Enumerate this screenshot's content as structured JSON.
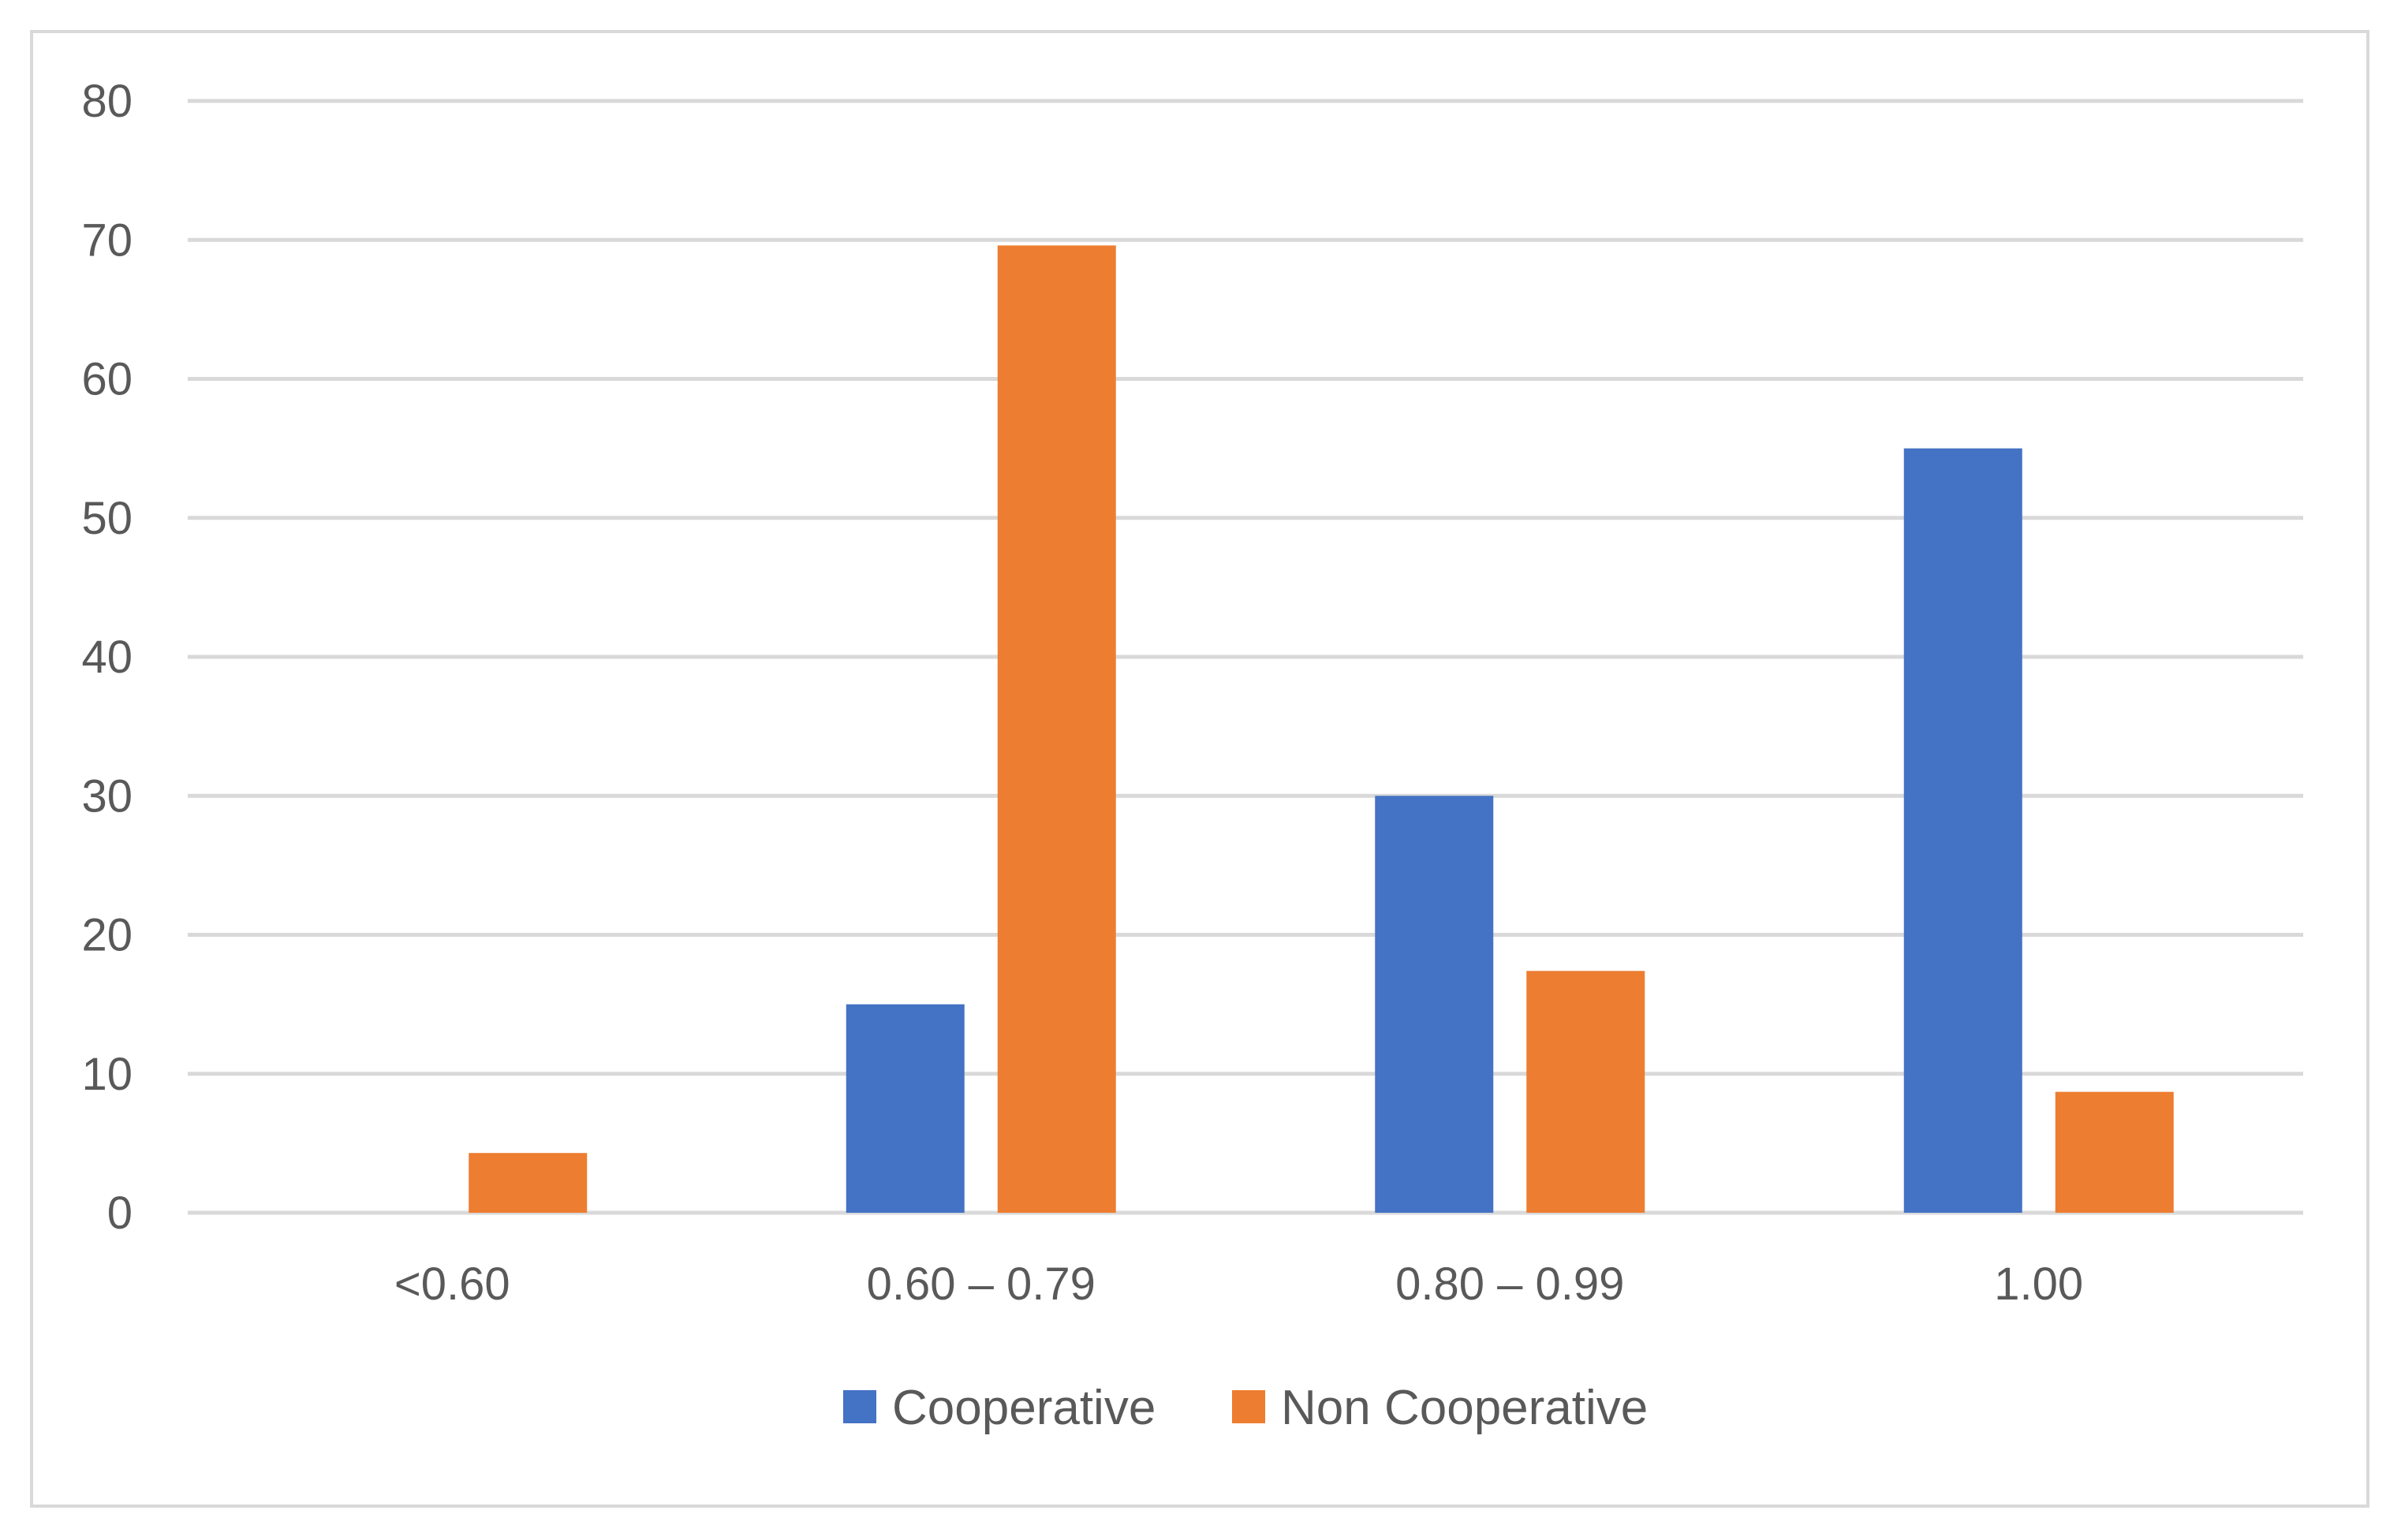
{
  "chart_data": {
    "type": "bar",
    "title": "",
    "xlabel": "",
    "ylabel": "",
    "categories": [
      "<0.60",
      "0.60 – 0.79",
      "0.80 – 0.99",
      "1.00"
    ],
    "series": [
      {
        "name": "Cooperative",
        "color": "#4472c4",
        "values": [
          0,
          15,
          30,
          55
        ]
      },
      {
        "name": "Non Cooperative",
        "color": "#ed7d31",
        "values": [
          4.3,
          69.6,
          17.4,
          8.7
        ]
      }
    ],
    "ylim": [
      0,
      80
    ],
    "yticks": [
      0,
      10,
      20,
      30,
      40,
      50,
      60,
      70,
      80
    ],
    "grid": true,
    "legend_position": "bottom"
  }
}
